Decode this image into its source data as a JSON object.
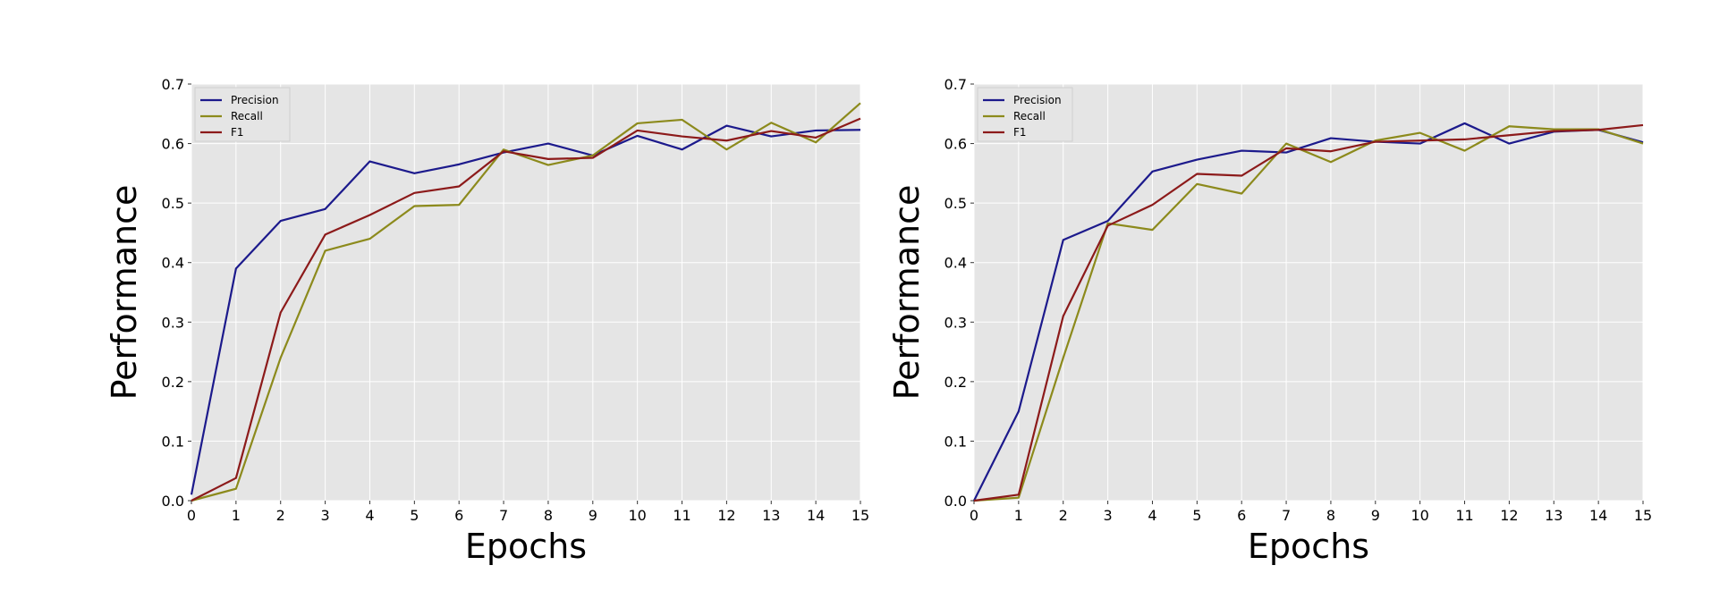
{
  "chart_data": [
    {
      "type": "line",
      "xlabel": "Epochs",
      "ylabel": "Performance",
      "xlim": [
        0,
        15
      ],
      "ylim": [
        0,
        0.7
      ],
      "x": [
        0,
        1,
        2,
        3,
        4,
        5,
        6,
        7,
        8,
        9,
        10,
        11,
        12,
        13,
        14,
        15
      ],
      "xticks": [
        "0",
        "1",
        "2",
        "3",
        "4",
        "5",
        "6",
        "7",
        "8",
        "9",
        "10",
        "11",
        "12",
        "13",
        "14",
        "15"
      ],
      "yticks": [
        "0.0",
        "0.1",
        "0.2",
        "0.3",
        "0.4",
        "0.5",
        "0.6",
        "0.7"
      ],
      "grid": true,
      "legend_position": "top-left",
      "series": [
        {
          "name": "Precision",
          "color": "#1c1a8c",
          "values": [
            0.01,
            0.39,
            0.47,
            0.49,
            0.57,
            0.55,
            0.565,
            0.585,
            0.6,
            0.58,
            0.613,
            0.59,
            0.63,
            0.612,
            0.622,
            0.623
          ]
        },
        {
          "name": "Recall",
          "color": "#8c8a1c",
          "values": [
            0.0,
            0.02,
            0.24,
            0.42,
            0.44,
            0.495,
            0.497,
            0.59,
            0.564,
            0.58,
            0.634,
            0.64,
            0.59,
            0.635,
            0.602,
            0.668
          ]
        },
        {
          "name": "F1",
          "color": "#8c1a1a",
          "values": [
            0.0,
            0.038,
            0.316,
            0.447,
            0.48,
            0.517,
            0.528,
            0.587,
            0.574,
            0.576,
            0.622,
            0.612,
            0.605,
            0.621,
            0.61,
            0.642
          ]
        }
      ]
    },
    {
      "type": "line",
      "xlabel": "Epochs",
      "ylabel": "Performance",
      "xlim": [
        0,
        15
      ],
      "ylim": [
        0,
        0.7
      ],
      "x": [
        0,
        1,
        2,
        3,
        4,
        5,
        6,
        7,
        8,
        9,
        10,
        11,
        12,
        13,
        14,
        15
      ],
      "xticks": [
        "0",
        "1",
        "2",
        "3",
        "4",
        "5",
        "6",
        "7",
        "8",
        "9",
        "10",
        "11",
        "12",
        "13",
        "14",
        "15"
      ],
      "yticks": [
        "0.0",
        "0.1",
        "0.2",
        "0.3",
        "0.4",
        "0.5",
        "0.6",
        "0.7"
      ],
      "grid": true,
      "legend_position": "top-left",
      "series": [
        {
          "name": "Precision",
          "color": "#1c1a8c",
          "values": [
            0.0,
            0.15,
            0.438,
            0.47,
            0.553,
            0.573,
            0.588,
            0.585,
            0.609,
            0.603,
            0.6,
            0.634,
            0.6,
            0.62,
            0.623,
            0.602
          ]
        },
        {
          "name": "Recall",
          "color": "#8c8a1c",
          "values": [
            0.0,
            0.005,
            0.24,
            0.466,
            0.455,
            0.532,
            0.516,
            0.6,
            0.569,
            0.605,
            0.618,
            0.588,
            0.629,
            0.624,
            0.624,
            0.6
          ]
        },
        {
          "name": "F1",
          "color": "#8c1a1a",
          "values": [
            0.0,
            0.01,
            0.31,
            0.462,
            0.497,
            0.549,
            0.546,
            0.592,
            0.587,
            0.603,
            0.605,
            0.607,
            0.614,
            0.621,
            0.623,
            0.631
          ]
        }
      ]
    }
  ]
}
